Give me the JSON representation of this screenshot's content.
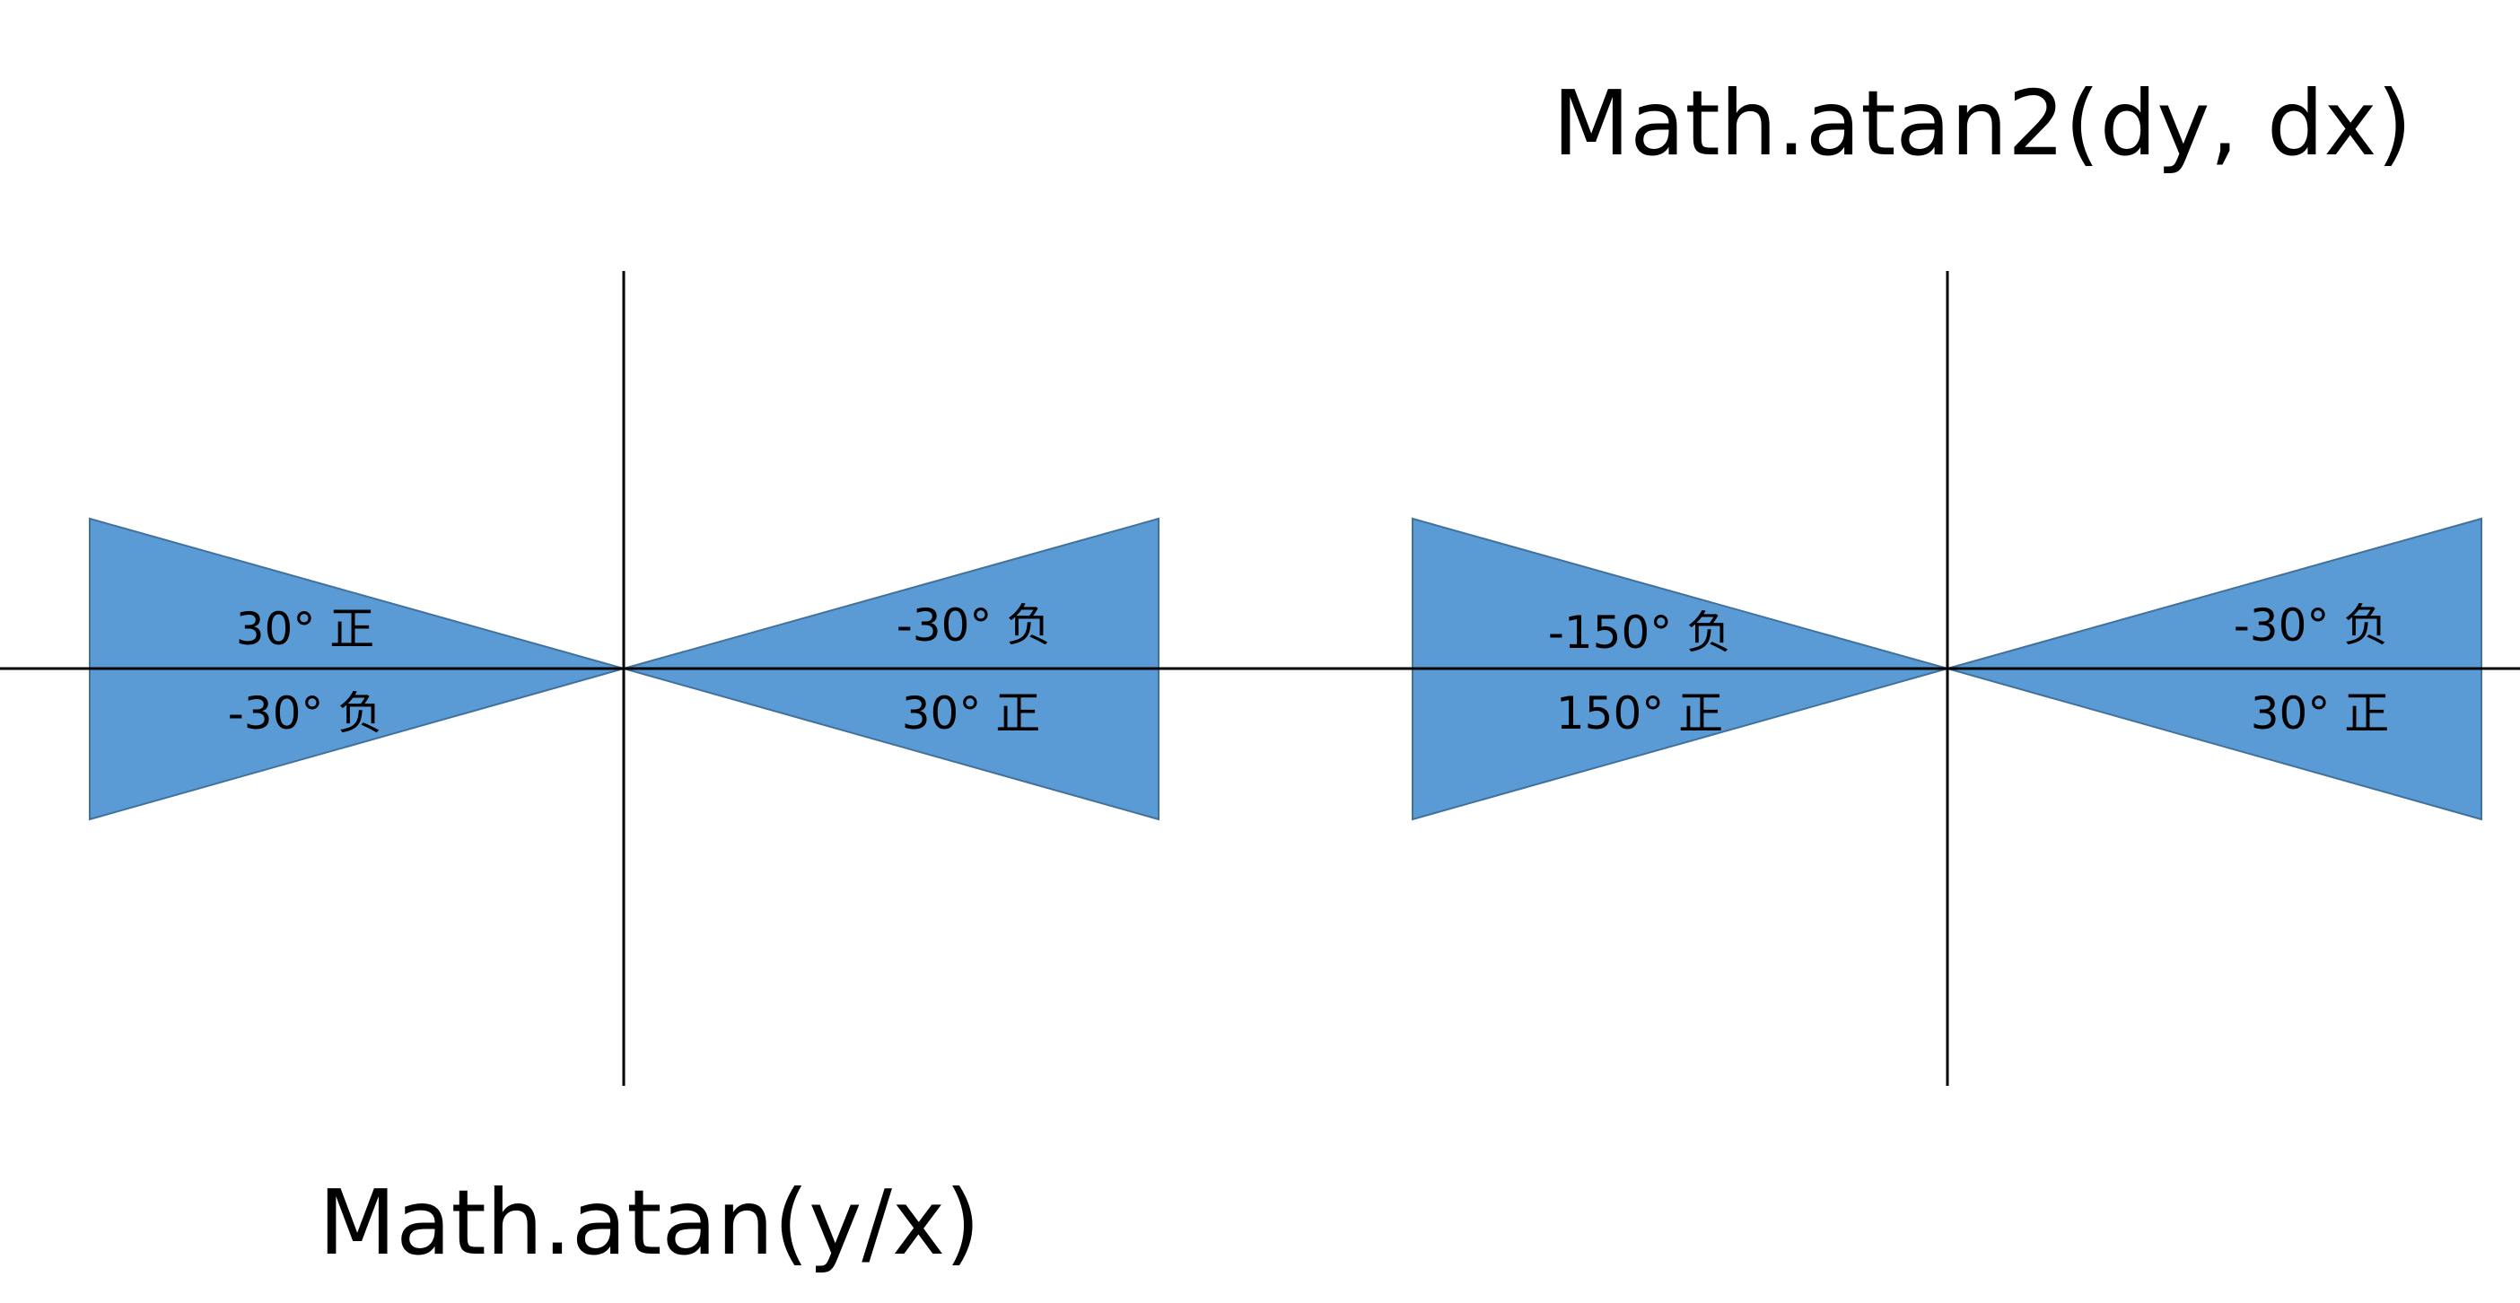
{
  "titles": {
    "atan2": "Math.atan2(dy, dx)",
    "atan": "Math.atan(y/x)"
  },
  "diagrams": {
    "atan": {
      "left_upper": "30° 正",
      "left_lower": "-30° 负",
      "right_upper": "-30° 负",
      "right_lower": "30° 正"
    },
    "atan2": {
      "left_upper": "-150° 负",
      "left_lower": "150° 正",
      "right_upper": "-30° 负",
      "right_lower": "30° 正"
    }
  },
  "colors": {
    "wedge_fill": "#5b9bd5",
    "wedge_stroke": "#41719c",
    "axis": "#000000"
  }
}
